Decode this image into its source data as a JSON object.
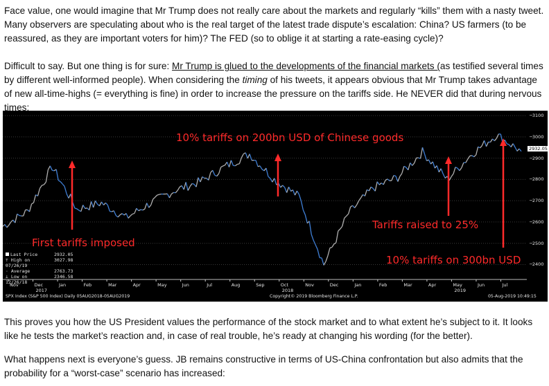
{
  "paragraphs": {
    "p1": "Face value, one would imagine that Mr Trump does not really care about the markets and regularly “kills” them with a nasty tweet. Many observers are speculating about who is the real target of the latest trade dispute’s escalation: China? US farmers (to be reassured, as they are important voters for him)? The FED (so to oblige it at starting a rate-easing cycle)?",
    "p2_a": "Difficult to say. But one thing is for sure: ",
    "p2_u": "Mr Trump is glued to the developments of the financial markets (",
    "p2_b": "as testified several times by different well-informed people). When considering the ",
    "p2_i": "timing",
    "p2_c": " of his tweets, it appears obvious that Mr Trump takes advantage of new all-time-highs (= everything is fine) in order to increase the pressure on the tariffs side. He NEVER did that during nervous times:",
    "p3": "This proves you how the US President values the performance of the stock market and to what extent he’s subject to it. It looks like he tests the market’s reaction and, in case of real trouble, he’s ready at changing his wording (for the better).",
    "p4": "What happens next is everyone’s guess. JB remains constructive in terms of US-China confrontation but also admits that the probability for a “worst-case” scenario has increased:"
  },
  "chart_data": {
    "type": "line",
    "annotations": [
      "10% tariffs on 200bn USD of Chinese goods",
      "Tariffs raised to 25%",
      "First tariffs imposed",
      "10% tariffs on 300bn USD"
    ],
    "legend": {
      "last_price_label": "Last Price",
      "last_price": "2932.05",
      "high_label": "High on 07/26/19",
      "high": "3027.98",
      "average_label": "Average",
      "average": "2763.73",
      "low_label": "Low on 12/26/18",
      "low": "2346.58"
    },
    "last_price_box": "2932.05",
    "y_ticks": [
      "3100",
      "3000",
      "2900",
      "2800",
      "2700",
      "2600",
      "2500",
      "2400"
    ],
    "ylim": [
      2330,
      3110
    ],
    "x_ticks": [
      "Nov",
      "Dec",
      "Jan",
      "Feb",
      "Mar",
      "Apr",
      "May",
      "Jun",
      "Jul",
      "Aug",
      "Sep",
      "Oct",
      "Nov",
      "Dec",
      "Jan",
      "Feb",
      "Mar",
      "Apr",
      "May",
      "Jun",
      "Jul"
    ],
    "year_labels": [
      "2017",
      "2018",
      "2019"
    ],
    "footer_left": "SPX Index (S&P 500 Index) Daily 05AUG2018-05AUG2019",
    "footer_center": "Copyright© 2019 Bloomberg Finance L.P.",
    "footer_right": "05-Aug-2019 10:49:15",
    "series": [
      {
        "x": [
          "2017-11",
          "2017-12",
          "2018-01",
          "2018-02",
          "2018-03",
          "2018-04",
          "2018-05",
          "2018-06",
          "2018-07",
          "2018-08",
          "2018-09",
          "2018-10",
          "2018-11",
          "2018-12",
          "2019-01",
          "2019-02",
          "2019-03",
          "2019-04",
          "2019-05",
          "2019-06",
          "2019-07",
          "2019-08"
        ],
        "values": [
          2580,
          2650,
          2860,
          2660,
          2690,
          2620,
          2690,
          2750,
          2790,
          2860,
          2920,
          2800,
          2720,
          2400,
          2640,
          2760,
          2810,
          2930,
          2800,
          2920,
          3010,
          2932
        ]
      }
    ],
    "colors": {
      "background": "#000000",
      "line_up": "#b0b0b0",
      "line_down": "#3f7fd6",
      "annotation": "#ff2a2a"
    }
  }
}
